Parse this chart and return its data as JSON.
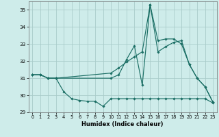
{
  "xlabel": "Humidex (Indice chaleur)",
  "bg_color": "#ceecea",
  "grid_color": "#aaccca",
  "line_color": "#1a6e64",
  "xlim": [
    -0.5,
    23.5
  ],
  "ylim": [
    29,
    35.5
  ],
  "yticks": [
    29,
    30,
    31,
    32,
    33,
    34,
    35
  ],
  "xticks": [
    0,
    1,
    2,
    3,
    4,
    5,
    6,
    7,
    8,
    9,
    10,
    11,
    12,
    13,
    14,
    15,
    16,
    17,
    18,
    19,
    20,
    21,
    22,
    23
  ],
  "lines": [
    {
      "x": [
        0,
        1,
        2,
        3,
        10,
        11,
        12,
        13,
        14,
        15,
        16,
        17,
        18,
        19,
        20,
        21,
        22,
        23
      ],
      "y": [
        31.2,
        31.2,
        31.0,
        31.0,
        31.0,
        31.2,
        32.1,
        32.9,
        30.6,
        35.3,
        33.2,
        33.3,
        33.3,
        33.0,
        31.8,
        31.0,
        30.5,
        29.6
      ]
    },
    {
      "x": [
        0,
        1,
        2,
        3,
        4,
        5,
        6,
        7,
        8,
        9,
        10,
        11,
        12,
        13,
        14,
        15,
        16,
        17,
        18,
        19,
        20,
        21,
        22,
        23
      ],
      "y": [
        31.2,
        31.2,
        31.0,
        31.0,
        30.2,
        29.8,
        29.7,
        29.65,
        29.65,
        29.35,
        29.8,
        29.8,
        29.8,
        29.8,
        29.8,
        29.8,
        29.8,
        29.8,
        29.8,
        29.8,
        29.8,
        29.8,
        29.8,
        29.55
      ]
    },
    {
      "x": [
        0,
        1,
        2,
        3,
        10,
        11,
        12,
        13,
        14,
        15,
        16,
        17,
        18,
        19,
        20,
        21,
        22,
        23
      ],
      "y": [
        31.2,
        31.2,
        31.0,
        31.0,
        31.3,
        31.6,
        31.95,
        32.25,
        32.55,
        35.3,
        32.55,
        32.85,
        33.1,
        33.2,
        31.8,
        31.0,
        30.5,
        29.6
      ]
    }
  ]
}
